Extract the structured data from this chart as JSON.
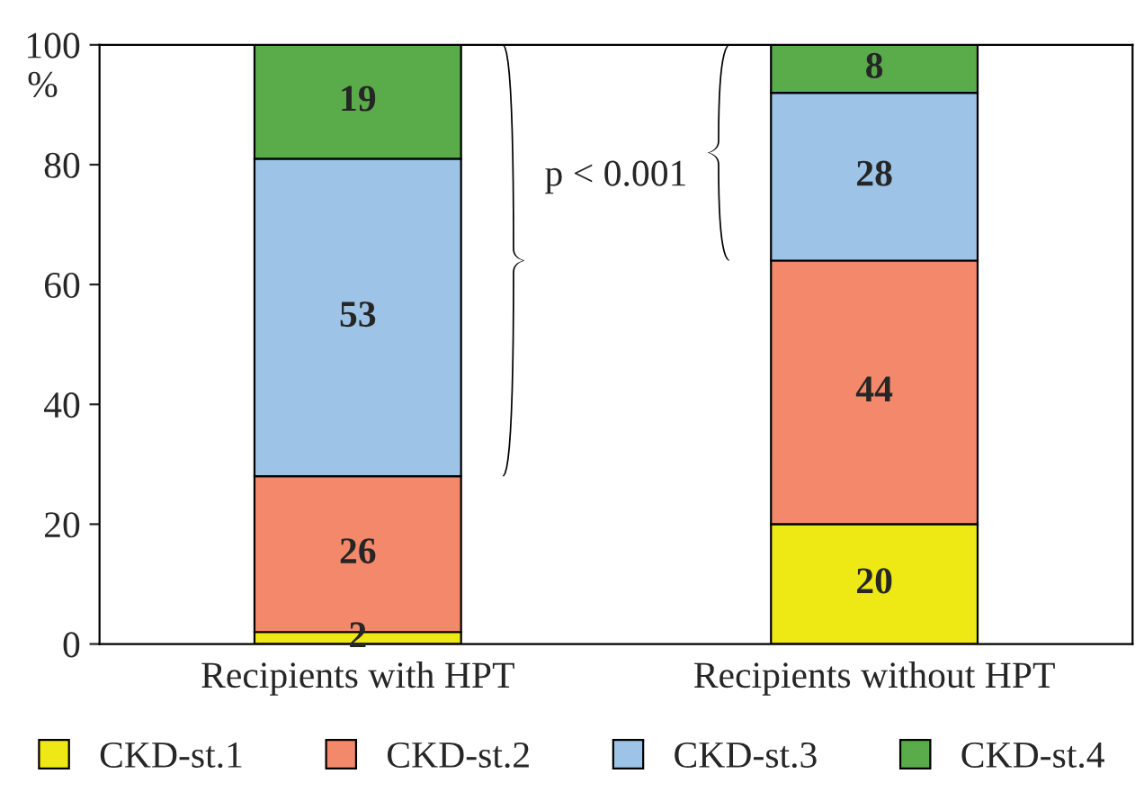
{
  "chart_data": {
    "type": "bar",
    "stacked": true,
    "ylabel": "%",
    "categories": [
      "Recipients with HPT",
      "Recipients without HPT"
    ],
    "series": [
      {
        "name": "CKD-st.1",
        "color": "#eee814",
        "values": [
          2,
          20
        ]
      },
      {
        "name": "CKD-st.2",
        "color": "#f4886a",
        "values": [
          26,
          44
        ]
      },
      {
        "name": "CKD-st.3",
        "color": "#9dc3e6",
        "values": [
          53,
          28
        ]
      },
      {
        "name": "CKD-st.4",
        "color": "#5aab4a",
        "values": [
          19,
          8
        ]
      }
    ],
    "ylim": [
      0,
      100
    ],
    "yticks": [
      0,
      20,
      40,
      60,
      80,
      100
    ],
    "data_labels": true,
    "grid": false,
    "legend": "bottom",
    "annotations": [
      "p < 0.001"
    ]
  }
}
